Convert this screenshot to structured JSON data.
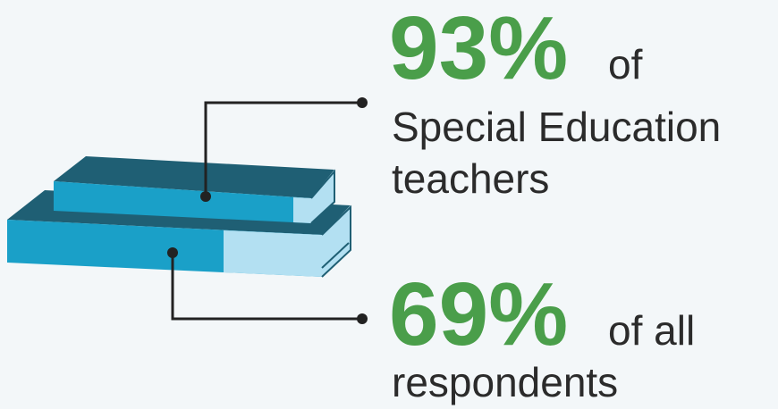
{
  "stats": [
    {
      "figure": "93%",
      "lines": [
        "of",
        "Special Education",
        "teachers"
      ]
    },
    {
      "figure": "69%",
      "lines": [
        "of all",
        "respondents"
      ]
    }
  ]
}
